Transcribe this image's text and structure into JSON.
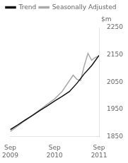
{
  "chart_data": {
    "type": "line",
    "ylabel": "$m",
    "xlim": [
      0,
      24
    ],
    "xticks": [
      {
        "value": 0,
        "label": "Sep\n2009"
      },
      {
        "value": 12,
        "label": "Sep\n2010"
      },
      {
        "value": 24,
        "label": "Sep\n2011"
      }
    ],
    "ylim": [
      1850,
      2250
    ],
    "yticks": [
      1850,
      1950,
      2050,
      2150,
      2250
    ],
    "grid": false,
    "legend": "upper left",
    "series": [
      {
        "name": "Trend",
        "color": "#111111",
        "x": [
          0,
          2,
          4,
          6,
          8,
          10,
          12,
          14,
          16,
          18,
          20,
          22,
          24
        ],
        "values": [
          1875,
          1892,
          1910,
          1927,
          1945,
          1962,
          1980,
          1997,
          2015,
          2045,
          2080,
          2110,
          2148
        ]
      },
      {
        "name": "Seasonally Adjusted",
        "color": "#aaaaaa",
        "x": [
          0,
          2,
          4,
          6,
          8,
          10,
          12,
          14,
          16,
          17,
          18,
          19,
          20,
          21,
          22,
          23,
          24
        ],
        "values": [
          1868,
          1888,
          1908,
          1928,
          1948,
          1968,
          1988,
          2015,
          2055,
          2075,
          2060,
          2055,
          2110,
          2155,
          2130,
          2140,
          2145
        ]
      }
    ]
  }
}
